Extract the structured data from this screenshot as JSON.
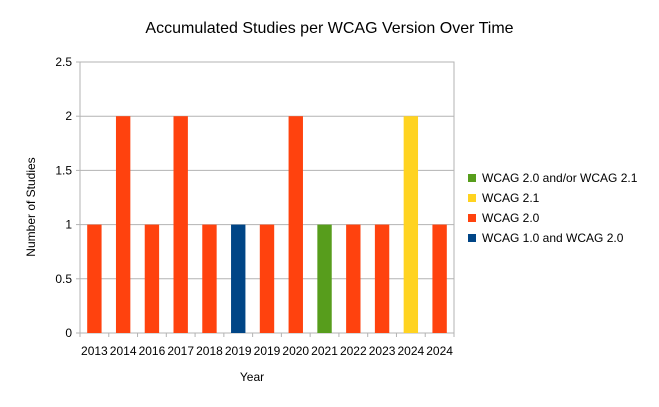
{
  "chart_data": {
    "type": "bar",
    "title": "Accumulated Studies per WCAG Version Over Time",
    "xlabel": "Year",
    "ylabel": "Number of Studies",
    "ylim": [
      0,
      2.5
    ],
    "ytick_labels": [
      "0",
      "0.5",
      "1",
      "1.5",
      "2",
      "2.5"
    ],
    "grid": true,
    "legend_position": "right",
    "bars": [
      {
        "category": "2013",
        "value": 1,
        "series": "WCAG 2.0"
      },
      {
        "category": "2014",
        "value": 2,
        "series": "WCAG 2.0"
      },
      {
        "category": "2016",
        "value": 1,
        "series": "WCAG 2.0"
      },
      {
        "category": "2017",
        "value": 2,
        "series": "WCAG 2.0"
      },
      {
        "category": "2018",
        "value": 1,
        "series": "WCAG 2.0"
      },
      {
        "category": "2019",
        "value": 1,
        "series": "WCAG 1.0 and WCAG 2.0"
      },
      {
        "category": "2019",
        "value": 1,
        "series": "WCAG 2.0"
      },
      {
        "category": "2020",
        "value": 2,
        "series": "WCAG 2.0"
      },
      {
        "category": "2021",
        "value": 1,
        "series": "WCAG 2.0 and/or WCAG 2.1"
      },
      {
        "category": "2022",
        "value": 1,
        "series": "WCAG 2.0"
      },
      {
        "category": "2023",
        "value": 1,
        "series": "WCAG 2.0"
      },
      {
        "category": "2024",
        "value": 2,
        "series": "WCAG 2.1"
      },
      {
        "category": "2024",
        "value": 1,
        "series": "WCAG 2.0"
      }
    ],
    "legend": [
      {
        "name": "WCAG 2.0 and/or WCAG 2.1",
        "color": "#579d1c"
      },
      {
        "name": "WCAG 2.1",
        "color": "#ffd320"
      },
      {
        "name": "WCAG 2.0",
        "color": "#ff420e"
      },
      {
        "name": "WCAG 1.0 and WCAG 2.0",
        "color": "#004586"
      }
    ]
  }
}
